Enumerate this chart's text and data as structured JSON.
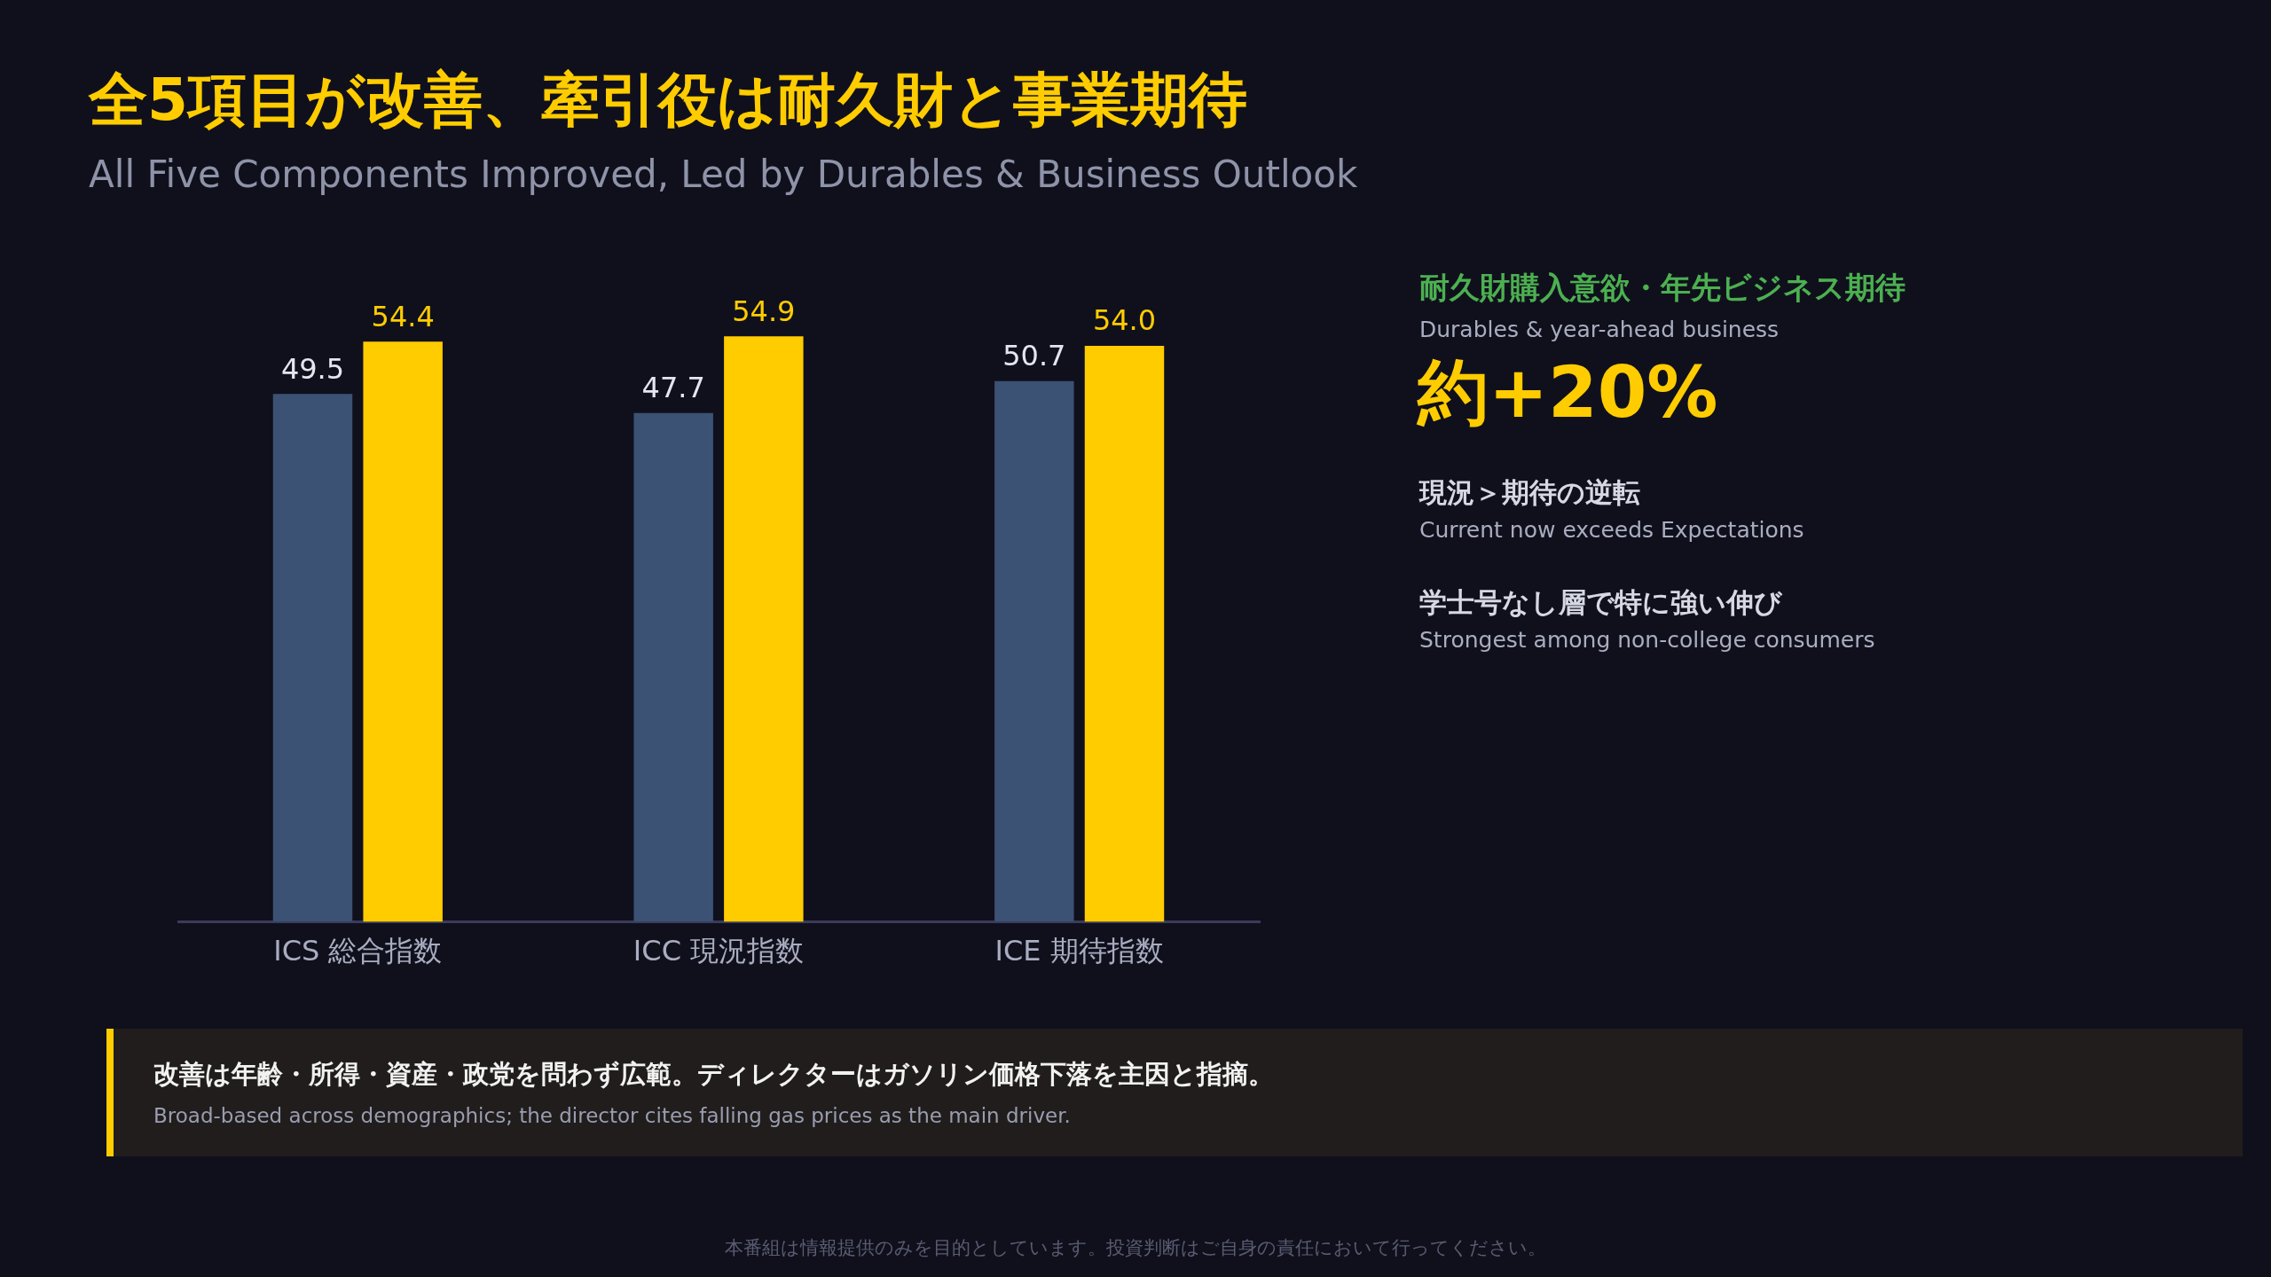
{
  "chart_data": {
    "type": "bar",
    "title": "全5項目が改善、牽引役は耐久財と事業期待",
    "subtitle": "All Five Components Improved, Led by Durables & Business Outlook",
    "categories": [
      "ICS 総合指数",
      "ICC 現況指数",
      "ICE 期待指数"
    ],
    "series": [
      {
        "color": "#3b5274",
        "values": [
          49.5,
          47.7,
          50.7
        ],
        "value_labels": [
          "49.5",
          "47.7",
          "50.7"
        ]
      },
      {
        "color": "#ffcc00",
        "values": [
          54.4,
          54.9,
          54.0
        ],
        "value_labels": [
          "54.4",
          "54.9",
          "54.0"
        ]
      }
    ],
    "legend": false,
    "annotations": [
      "耐久財購入意欲・年先ビジネス期待",
      "Durables & year-ahead business",
      "約+20%",
      "現況＞期待の逆転",
      "Current now exceeds Expectations",
      "学士号なし層で特に強い伸び",
      "Strongest among non-college consumers",
      "改善は年齢・所得・資産・政党を問わず広範。ディレクターはガソリン価格下落を主因と指摘。",
      "Broad-based across demographics; the director cites falling gas prices as the main driver.",
      "本番組は情報提供のみを目的としています。投資判断はご自身の責任において行ってください。"
    ]
  }
}
